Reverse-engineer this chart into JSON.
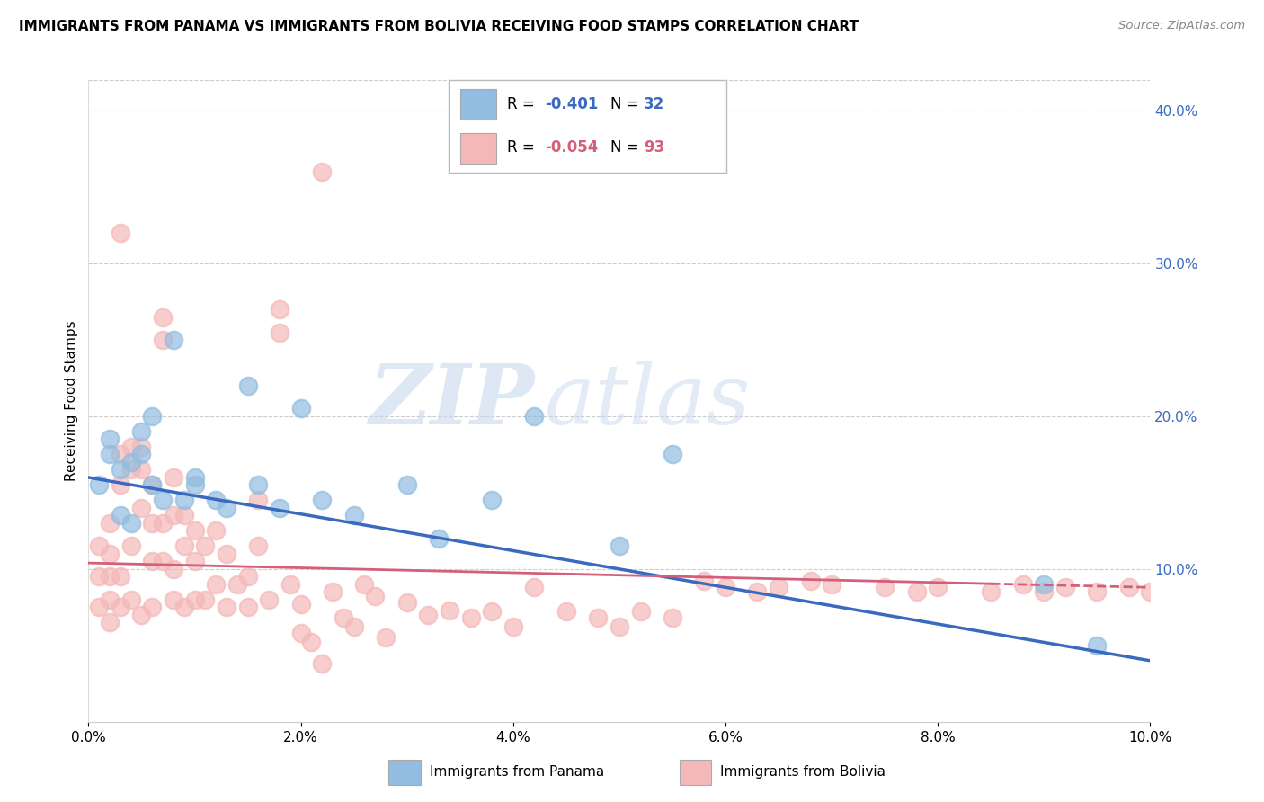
{
  "title": "IMMIGRANTS FROM PANAMA VS IMMIGRANTS FROM BOLIVIA RECEIVING FOOD STAMPS CORRELATION CHART",
  "source": "Source: ZipAtlas.com",
  "xlabel_panama": "Immigrants from Panama",
  "xlabel_bolivia": "Immigrants from Bolivia",
  "ylabel": "Receiving Food Stamps",
  "xlim": [
    0.0,
    0.1
  ],
  "ylim": [
    0.0,
    0.42
  ],
  "xticks": [
    0.0,
    0.02,
    0.04,
    0.06,
    0.08,
    0.1
  ],
  "yticks_right": [
    0.1,
    0.2,
    0.3,
    0.4
  ],
  "legend_r_panama": "-0.401",
  "legend_n_panama": "32",
  "legend_r_bolivia": "-0.054",
  "legend_n_bolivia": "93",
  "panama_color": "#92bce0",
  "bolivia_color": "#f4b8b8",
  "panama_line_color": "#3a6abf",
  "bolivia_line_color": "#d45f7a",
  "watermark_zip": "ZIP",
  "watermark_atlas": "atlas",
  "panama_x": [
    0.001,
    0.002,
    0.002,
    0.003,
    0.003,
    0.004,
    0.004,
    0.005,
    0.005,
    0.006,
    0.006,
    0.007,
    0.008,
    0.009,
    0.01,
    0.01,
    0.012,
    0.013,
    0.015,
    0.016,
    0.018,
    0.02,
    0.022,
    0.025,
    0.03,
    0.033,
    0.038,
    0.042,
    0.05,
    0.055,
    0.09,
    0.095
  ],
  "panama_y": [
    0.155,
    0.185,
    0.175,
    0.165,
    0.135,
    0.17,
    0.13,
    0.19,
    0.175,
    0.2,
    0.155,
    0.145,
    0.25,
    0.145,
    0.16,
    0.155,
    0.145,
    0.14,
    0.22,
    0.155,
    0.14,
    0.205,
    0.145,
    0.135,
    0.155,
    0.12,
    0.145,
    0.2,
    0.115,
    0.175,
    0.09,
    0.05
  ],
  "bolivia_x": [
    0.001,
    0.001,
    0.001,
    0.002,
    0.002,
    0.002,
    0.002,
    0.002,
    0.003,
    0.003,
    0.003,
    0.003,
    0.003,
    0.004,
    0.004,
    0.004,
    0.004,
    0.005,
    0.005,
    0.005,
    0.005,
    0.006,
    0.006,
    0.006,
    0.006,
    0.007,
    0.007,
    0.007,
    0.007,
    0.008,
    0.008,
    0.008,
    0.008,
    0.009,
    0.009,
    0.009,
    0.01,
    0.01,
    0.01,
    0.011,
    0.011,
    0.012,
    0.012,
    0.013,
    0.013,
    0.014,
    0.015,
    0.015,
    0.016,
    0.016,
    0.017,
    0.018,
    0.018,
    0.019,
    0.02,
    0.02,
    0.021,
    0.022,
    0.022,
    0.023,
    0.024,
    0.025,
    0.026,
    0.027,
    0.028,
    0.03,
    0.032,
    0.034,
    0.036,
    0.038,
    0.04,
    0.042,
    0.045,
    0.048,
    0.05,
    0.052,
    0.055,
    0.058,
    0.06,
    0.063,
    0.065,
    0.068,
    0.07,
    0.075,
    0.078,
    0.08,
    0.085,
    0.088,
    0.09,
    0.092,
    0.095,
    0.098,
    0.1
  ],
  "bolivia_y": [
    0.115,
    0.095,
    0.075,
    0.13,
    0.11,
    0.095,
    0.08,
    0.065,
    0.32,
    0.175,
    0.155,
    0.095,
    0.075,
    0.18,
    0.165,
    0.115,
    0.08,
    0.18,
    0.165,
    0.14,
    0.07,
    0.155,
    0.13,
    0.105,
    0.075,
    0.265,
    0.25,
    0.13,
    0.105,
    0.16,
    0.135,
    0.1,
    0.08,
    0.135,
    0.115,
    0.075,
    0.125,
    0.105,
    0.08,
    0.115,
    0.08,
    0.125,
    0.09,
    0.11,
    0.075,
    0.09,
    0.095,
    0.075,
    0.145,
    0.115,
    0.08,
    0.27,
    0.255,
    0.09,
    0.077,
    0.058,
    0.052,
    0.038,
    0.36,
    0.085,
    0.068,
    0.062,
    0.09,
    0.082,
    0.055,
    0.078,
    0.07,
    0.073,
    0.068,
    0.072,
    0.062,
    0.088,
    0.072,
    0.068,
    0.062,
    0.072,
    0.068,
    0.092,
    0.088,
    0.085,
    0.088,
    0.092,
    0.09,
    0.088,
    0.085,
    0.088,
    0.085,
    0.09,
    0.085,
    0.088,
    0.085,
    0.088,
    0.085
  ]
}
